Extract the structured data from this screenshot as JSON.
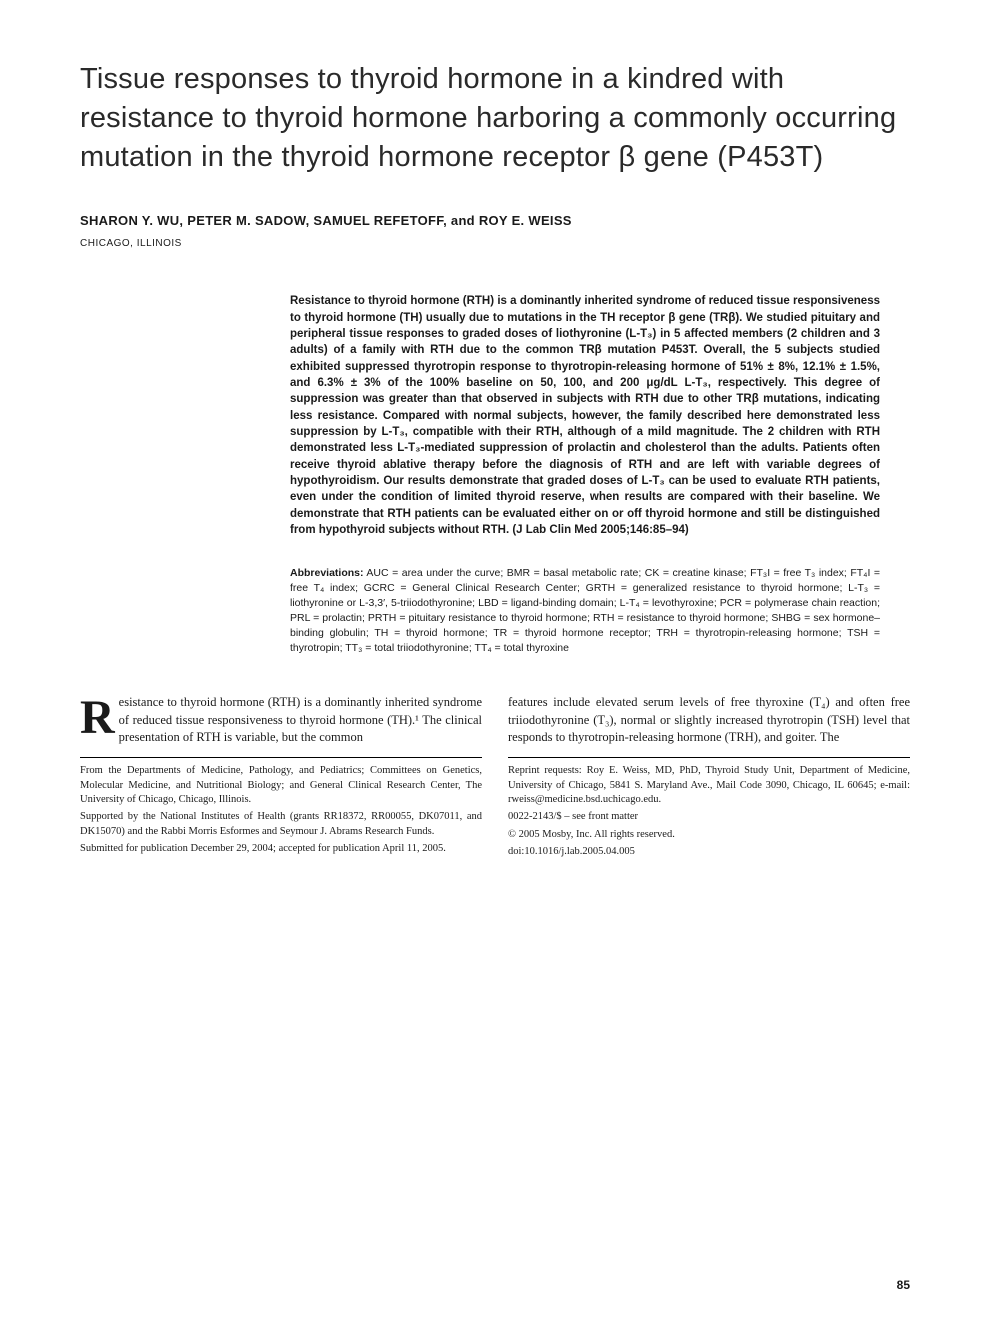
{
  "title": "Tissue responses to thyroid hormone in a kindred with resistance to thyroid hormone harboring a commonly occurring mutation in the thyroid hormone receptor β gene (P453T)",
  "authors": "SHARON Y. WU, PETER M. SADOW, SAMUEL REFETOFF, and ROY E. WEISS",
  "location": "CHICAGO, ILLINOIS",
  "abstract": "Resistance to thyroid hormone (RTH) is a dominantly inherited syndrome of reduced tissue responsiveness to thyroid hormone (TH) usually due to mutations in the TH receptor β gene (TRβ). We studied pituitary and peripheral tissue responses to graded doses of liothyronine (L-T₃) in 5 affected members (2 children and 3 adults) of a family with RTH due to the common TRβ mutation P453T. Overall, the 5 subjects studied exhibited suppressed thyrotropin response to thyrotropin-releasing hormone of 51% ± 8%, 12.1% ± 1.5%, and 6.3% ± 3% of the 100% baseline on 50, 100, and 200 μg/dL L-T₃, respectively. This degree of suppression was greater than that observed in subjects with RTH due to other TRβ mutations, indicating less resistance. Compared with normal subjects, however, the family described here demonstrated less suppression by L-T₃, compatible with their RTH, although of a mild magnitude. The 2 children with RTH demonstrated less L-T₃-mediated suppression of prolactin and cholesterol than the adults. Patients often receive thyroid ablative therapy before the diagnosis of RTH and are left with variable degrees of hypothyroidism. Our results demonstrate that graded doses of L-T₃ can be used to evaluate RTH patients, even under the condition of limited thyroid reserve, when results are compared with their baseline. We demonstrate that RTH patients can be evaluated either on or off thyroid hormone and still be distinguished from hypothyroid subjects without RTH. (J Lab Clin Med 2005;146:85–94)",
  "abbrev_label": "Abbreviations:",
  "abbrev_body": " AUC = area under the curve; BMR = basal metabolic rate; CK = creatine kinase; FT₃I = free T₃ index; FT₄I = free T₄ index; GCRC = General Clinical Research Center; GRTH = generalized resistance to thyroid hormone; L-T₃ = liothyronine or L-3,3′, 5-triiodothyronine; LBD = ligand-binding domain; L-T₄ = levothyroxine; PCR = polymerase chain reaction; PRL = prolactin; PRTH = pituitary resistance to thyroid hormone; RTH = resistance to thyroid hormone; SHBG = sex hormone–binding globulin; TH = thyroid hormone; TR = thyroid hormone receptor; TRH = thyrotropin-releasing hormone; TSH = thyrotropin; TT₃ = total triiodothyronine; TT₄ = total thyroxine",
  "body": {
    "dropcap": "R",
    "col1_opening": "esistance to thyroid hormone (RTH) is a dominantly inherited syndrome of reduced tissue responsiveness to thyroid hormone (TH).¹ The clinical presentation of RTH is variable, but the common",
    "col2_opening": "features include elevated serum levels of free thyroxine (T₄) and often free triiodothyronine (T₃), normal or slightly increased thyrotropin (TSH) level that responds to thyrotropin-releasing hormone (TRH), and goiter. The"
  },
  "footnotes_left": [
    "From the Departments of Medicine, Pathology, and Pediatrics; Committees on Genetics, Molecular Medicine, and Nutritional Biology; and General Clinical Research Center, The University of Chicago, Chicago, Illinois.",
    "Supported by the National Institutes of Health (grants RR18372, RR00055, DK07011, and DK15070) and the Rabbi Morris Esformes and Seymour J. Abrams Research Funds.",
    "Submitted for publication December 29, 2004; accepted for publication April 11, 2005."
  ],
  "footnotes_right": [
    "Reprint requests: Roy E. Weiss, MD, PhD, Thyroid Study Unit, Department of Medicine, University of Chicago, 5841 S. Maryland Ave., Mail Code 3090, Chicago, IL 60645; e-mail: rweiss@medicine.bsd.uchicago.edu.",
    "0022-2143/$ – see front matter",
    "© 2005 Mosby, Inc. All rights reserved.",
    "doi:10.1016/j.lab.2005.04.005"
  ],
  "page_number": "85"
}
